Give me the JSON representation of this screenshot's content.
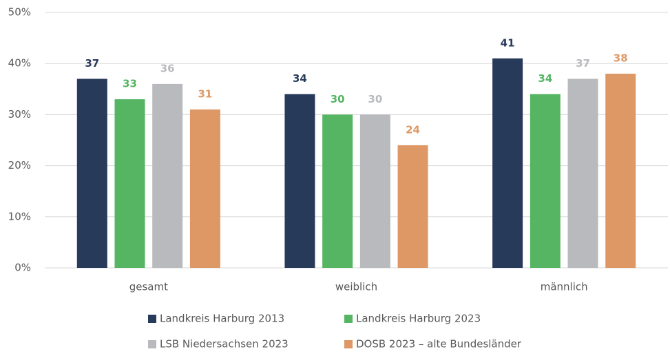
{
  "chart_data": {
    "type": "bar",
    "categories": [
      "gesamt",
      "weiblich",
      "männlich"
    ],
    "series": [
      {
        "name": "Landkreis Harburg 2013",
        "color": "#283a5a",
        "values": [
          37,
          34,
          41
        ]
      },
      {
        "name": "Landkreis Harburg 2023",
        "color": "#55b562",
        "values": [
          33,
          30,
          34
        ]
      },
      {
        "name": "LSB Niedersachsen 2023",
        "color": "#b9babd",
        "values": [
          36,
          30,
          37
        ]
      },
      {
        "name": "DOSB 2023 – alte Bundesländer",
        "color": "#dd9865",
        "values": [
          31,
          24,
          38
        ]
      }
    ],
    "ylim": [
      0,
      50
    ],
    "yticks": [
      {
        "value": 0,
        "label": "0%"
      },
      {
        "value": 10,
        "label": "10%"
      },
      {
        "value": 20,
        "label": "20%"
      },
      {
        "value": 30,
        "label": "30%"
      },
      {
        "value": 40,
        "label": "40%"
      },
      {
        "value": 50,
        "label": "50%"
      }
    ],
    "grid": true,
    "legend": "bottom"
  }
}
